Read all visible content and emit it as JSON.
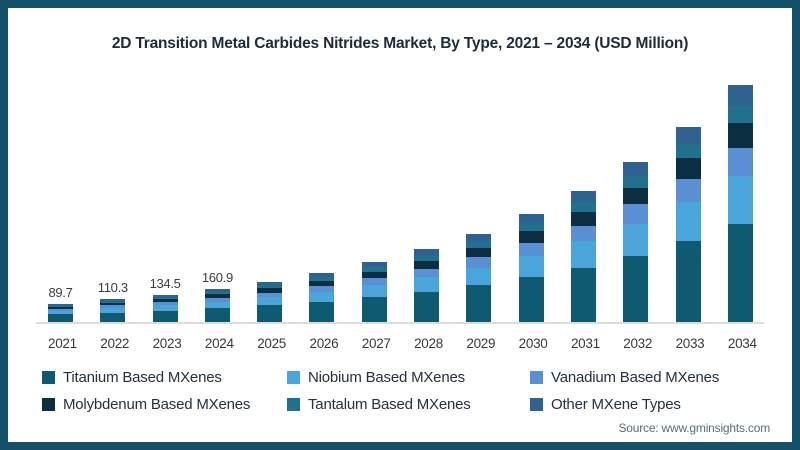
{
  "frame": {
    "border_color": "#15506a",
    "background": "#ffffff",
    "axis_line_color": "#dcdcdc"
  },
  "title": "2D Transition Metal Carbides Nitrides Market, By Type, 2021 – 2034 (USD Million)",
  "source": "Source: www.gminsights.com",
  "legend": {
    "position": "bottom",
    "items": [
      {
        "label": "Titanium Based MXenes",
        "color": "#0f5a70"
      },
      {
        "label": "Niobium Based MXenes",
        "color": "#4aa5da"
      },
      {
        "label": "Vanadium Based MXenes",
        "color": "#5b8fd4"
      },
      {
        "label": "Molybdenum Based MXenes",
        "color": "#0b2e40"
      },
      {
        "label": "Tantalum Based MXenes",
        "color": "#20708e"
      },
      {
        "label": "Other MXene Types",
        "color": "#2f6291"
      }
    ]
  },
  "chart_data": {
    "type": "bar",
    "stacked": true,
    "title": "2D Transition Metal Carbides Nitrides Market, By Type, 2021 – 2034 (USD Million)",
    "xlabel": "",
    "ylabel": "USD Million",
    "ylim": [
      0,
      1250
    ],
    "grid": false,
    "legend_position": "bottom",
    "categories": [
      "2021",
      "2022",
      "2023",
      "2024",
      "2025",
      "2026",
      "2027",
      "2028",
      "2029",
      "2030",
      "2031",
      "2032",
      "2033",
      "2034"
    ],
    "totals": [
      89.7,
      110.3,
      134.5,
      160.9,
      196.0,
      238.9,
      290.8,
      354.3,
      431.6,
      525.7,
      640.2,
      780.0,
      950.2,
      1157.2
    ],
    "value_labels": [
      "89.7",
      "110.3",
      "134.5",
      "160.9",
      "",
      "",
      "",
      "",
      "",
      "",
      "",
      "",
      "",
      ""
    ],
    "series": [
      {
        "name": "Titanium Based MXenes",
        "color": "#0f5a70",
        "values": [
          37.2,
          45.8,
          55.8,
          66.8,
          81.3,
          99.1,
          120.7,
          147.0,
          179.1,
          218.2,
          265.7,
          323.7,
          394.3,
          480.2
        ]
      },
      {
        "name": "Niobium Based MXenes",
        "color": "#4aa5da",
        "values": [
          17.9,
          22.1,
          26.9,
          32.2,
          39.2,
          47.8,
          58.2,
          70.9,
          86.3,
          105.1,
          128.1,
          156.0,
          190.0,
          231.4
        ]
      },
      {
        "name": "Vanadium Based MXenes",
        "color": "#5b8fd4",
        "values": [
          10.8,
          13.2,
          16.1,
          19.3,
          23.5,
          28.7,
          34.9,
          42.5,
          51.8,
          63.1,
          76.8,
          93.6,
          114.0,
          138.9
        ]
      },
      {
        "name": "Molybdenum Based MXenes",
        "color": "#0b2e40",
        "values": [
          9.4,
          11.6,
          14.1,
          16.9,
          20.6,
          25.1,
          30.5,
          37.2,
          45.3,
          55.2,
          67.2,
          81.9,
          99.8,
          121.5
        ]
      },
      {
        "name": "Tantalum Based MXenes",
        "color": "#20708e",
        "values": [
          6.7,
          8.3,
          10.1,
          12.1,
          14.7,
          17.9,
          21.8,
          26.6,
          32.4,
          39.4,
          48.0,
          58.5,
          71.3,
          86.8
        ]
      },
      {
        "name": "Other MXene Types",
        "color": "#2f6291",
        "values": [
          7.6,
          9.4,
          11.4,
          13.7,
          16.7,
          20.3,
          24.7,
          30.1,
          36.7,
          44.7,
          54.4,
          66.3,
          80.8,
          98.4
        ]
      }
    ]
  }
}
